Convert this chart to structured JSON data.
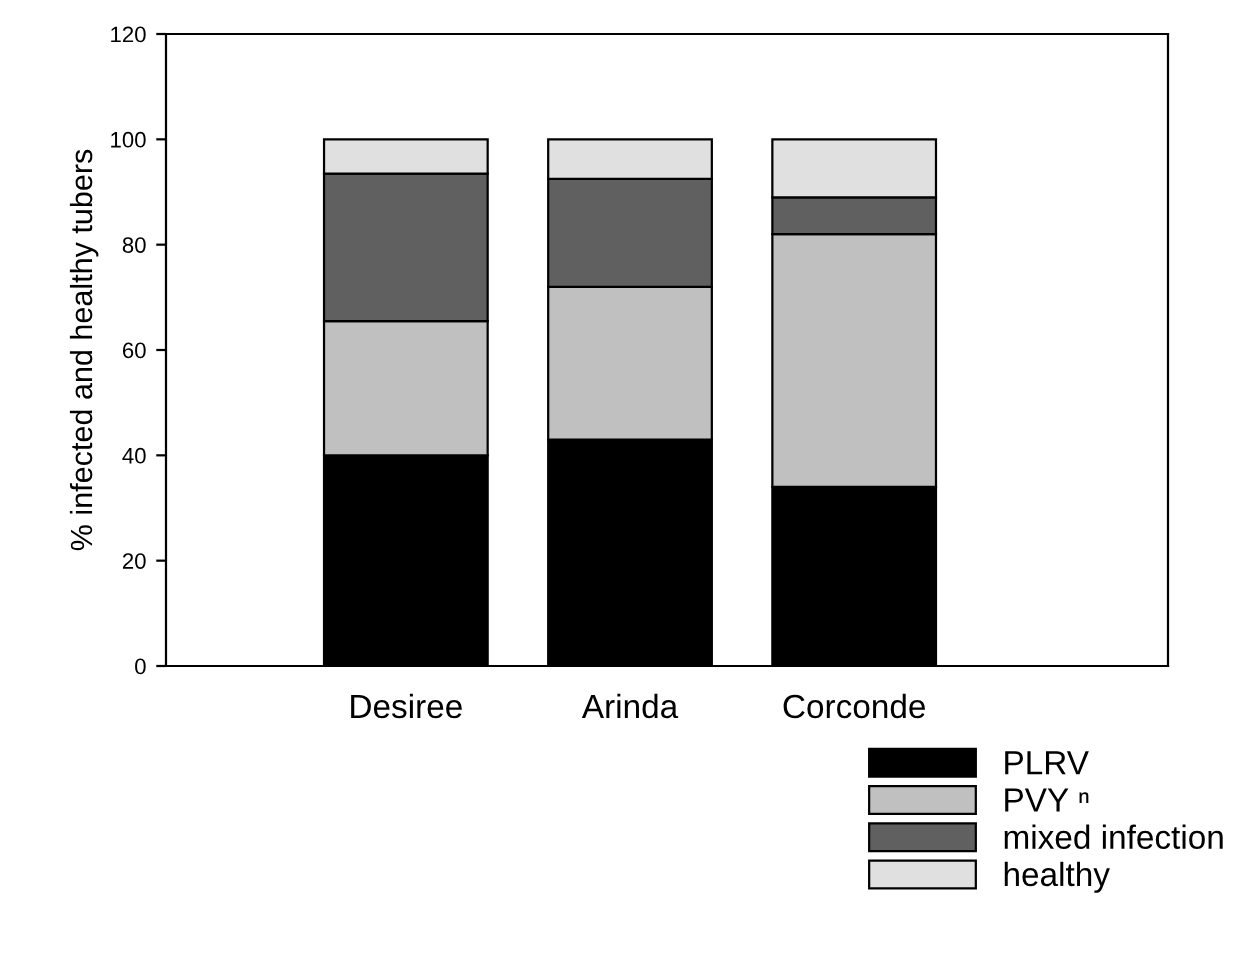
{
  "chart_data": {
    "type": "bar",
    "stacked": true,
    "ylabel": "% infected and healthy tubers",
    "categories": [
      "Desiree",
      "Arinda",
      "Corconde"
    ],
    "series": [
      {
        "name": "PLRV",
        "color": "#000000",
        "values": [
          40,
          43,
          34
        ]
      },
      {
        "name": "PVY ⁿ",
        "color": "#c0c0c0",
        "values": [
          25.5,
          29,
          48
        ]
      },
      {
        "name": "mixed infection",
        "color": "#606060",
        "values": [
          28,
          20.5,
          7
        ]
      },
      {
        "name": "healthy",
        "color": "#e0e0e0",
        "values": [
          6.5,
          7.5,
          11
        ]
      }
    ],
    "ylim": [
      0,
      120
    ],
    "yticks": [
      0,
      20,
      40,
      60,
      80,
      100,
      120
    ],
    "grid": false,
    "legend": "bottom right"
  }
}
